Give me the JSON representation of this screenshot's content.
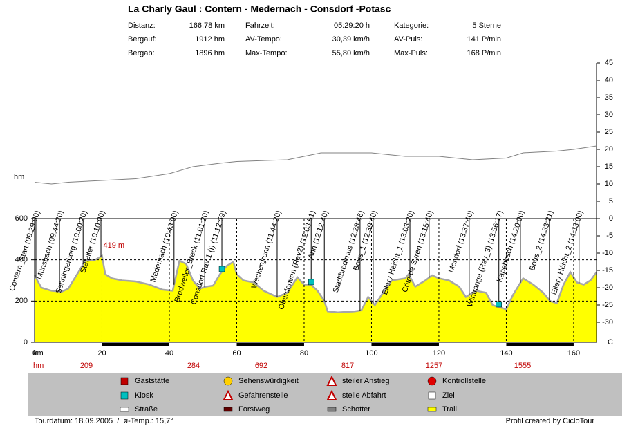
{
  "chart_data": {
    "type": "area",
    "title": "La Charly Gaul : Contern - Medernach - Consdorf -Potasc",
    "stats": [
      [
        "Distanz:",
        "166,78 km",
        "Fahrzeit:",
        "05:29:20 h",
        "Kategorie:",
        "5 Sterne"
      ],
      [
        "Bergauf:",
        "1912 hm",
        "AV-Tempo:",
        "30,39 km/h",
        "AV-Puls:",
        "141 P/min"
      ],
      [
        "Bergab:",
        "1896 hm",
        "Max-Tempo:",
        "55,80 km/h",
        "Max-Puls:",
        "168 P/min"
      ]
    ],
    "y_label": "hm",
    "x_label": "km",
    "y2_label": "C",
    "color": "#ffff00",
    "line_color": "#a6a6a6",
    "x": [
      0,
      2,
      5,
      8,
      10,
      13,
      15,
      18,
      20,
      21,
      23,
      26,
      30,
      34,
      38,
      41,
      43,
      45,
      47,
      49,
      51,
      53,
      55,
      57,
      59,
      60,
      62,
      65,
      68,
      72,
      75,
      78,
      80,
      82,
      84,
      86,
      87,
      90,
      95,
      97,
      99,
      101,
      103,
      106,
      110,
      111,
      113,
      116,
      118,
      120,
      123,
      126,
      128,
      131,
      134,
      136,
      138,
      140,
      142,
      145,
      148,
      151,
      153,
      155,
      157,
      159,
      161,
      163,
      165,
      166.78
    ],
    "values": [
      325,
      265,
      250,
      245,
      260,
      340,
      395,
      400,
      419,
      330,
      310,
      300,
      295,
      280,
      255,
      250,
      395,
      380,
      300,
      260,
      270,
      275,
      330,
      370,
      390,
      330,
      300,
      290,
      250,
      220,
      240,
      315,
      280,
      280,
      250,
      200,
      150,
      145,
      150,
      155,
      220,
      180,
      230,
      300,
      310,
      330,
      270,
      300,
      325,
      310,
      300,
      270,
      220,
      250,
      240,
      180,
      170,
      160,
      230,
      310,
      280,
      240,
      200,
      190,
      280,
      340,
      290,
      280,
      300,
      340
    ],
    "max_label": "419 m",
    "xlim": [
      0,
      166.78
    ],
    "xticks": [
      0,
      20,
      40,
      60,
      80,
      100,
      120,
      140,
      160
    ],
    "ylim": [
      0,
      600
    ],
    "yticks": [
      0,
      200,
      400,
      600
    ],
    "y2lim": [
      -35.8,
      45
    ],
    "y2ticks": [
      45,
      40,
      35,
      30,
      25,
      20,
      15,
      10,
      5,
      0,
      -5,
      -10,
      -15,
      -20,
      -25,
      -30
    ],
    "temperature": {
      "axis": "y2",
      "color": "#808080",
      "x": [
        0,
        5,
        10,
        20,
        30,
        40,
        47,
        55,
        60,
        75,
        85,
        100,
        110,
        120,
        130,
        140,
        145,
        155,
        160,
        166.78
      ],
      "values": [
        10.5,
        10,
        10.5,
        11,
        11.5,
        13,
        15,
        16,
        16.5,
        17,
        19,
        19,
        18,
        18,
        17,
        17.5,
        19,
        19.5,
        20,
        21
      ]
    },
    "grid": true,
    "hm_row": {
      "label": "hm",
      "values": [
        209,
        284,
        692,
        817,
        1257,
        1555
      ]
    },
    "waypoints": [
      {
        "label": "Contern_Start (09:29:00)",
        "km": 0.4
      },
      {
        "label": "Münsbach (09:44:20)",
        "km": 7.4
      },
      {
        "label": "Senningerberg (10:00:20)",
        "km": 14.4
      },
      {
        "label": "Stafelter (10:10:00)",
        "km": 19.7
      },
      {
        "label": "Medernach (10:43:00)",
        "km": 41.4
      },
      {
        "label": "Bredweiler_Breck (11:01:20)",
        "km": 50.5
      },
      {
        "label": "Consdorf Rav 1 (I) (11:12:59)",
        "km": 55.6,
        "kiosk": true
      },
      {
        "label": "Weckergronn (11:44:20)",
        "km": 72
      },
      {
        "label": "Oberdonven (Rav2) (12:03:51)",
        "km": 82.1,
        "kiosk": true
      },
      {
        "label": "Ahn (12:12:40)",
        "km": 86
      },
      {
        "label": "Stadtbredimus (12:28:46)",
        "km": 96.6
      },
      {
        "label": "Bous_1 (12:39:40)",
        "km": 100.5
      },
      {
        "label": "Ellery Héicht_1 (13:03:20)",
        "km": 111.4
      },
      {
        "label": "Côte de Syren (13:15:40)",
        "km": 117.1
      },
      {
        "label": "Mondorf (13:37:40)",
        "km": 129
      },
      {
        "label": "Wintrange (Rav_3) (13:56:17)",
        "km": 137.8,
        "kiosk": true
      },
      {
        "label": "Kapebesch (14:20:00)",
        "km": 144.2
      },
      {
        "label": "Bous_2 (14:33:21)",
        "km": 152.8
      },
      {
        "label": "Ellery Héicht_2 (14:53:00)",
        "km": 161.6
      }
    ],
    "legend": [
      "Gaststätte",
      "Sehenswürdigkeit",
      "steiler Anstieg",
      "Kontrollstelle",
      "Kiosk",
      "Gefahrenstelle",
      "steile Abfahrt",
      "Ziel",
      "Straße",
      "Forstweg",
      "Schotter",
      "Trail"
    ],
    "footer_left": "Tourdatum: 18.09.2005  /  ø-Temp.: 15,7°",
    "footer_right": "Profil created by CicloTour"
  }
}
